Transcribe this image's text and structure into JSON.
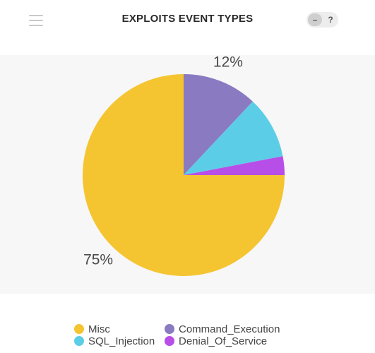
{
  "header": {
    "title": "EXPLOITS EVENT TYPES",
    "minimize_label": "–",
    "help_label": "?"
  },
  "colors": {
    "misc": "#f5c431",
    "command_execution": "#8a7ac2",
    "sql_injection": "#5ccde6",
    "denial_of_service": "#b84ee8"
  },
  "chart_data": {
    "type": "pie",
    "title": "EXPLOITS EVENT TYPES",
    "slices": [
      {
        "name": "Command_Execution",
        "value": 12,
        "color": "#8a7ac2",
        "label": "12%"
      },
      {
        "name": "SQL_Injection",
        "value": 10,
        "color": "#5ccde6",
        "label": ""
      },
      {
        "name": "Denial_Of_Service",
        "value": 3,
        "color": "#b84ee8",
        "label": ""
      },
      {
        "name": "Misc",
        "value": 75,
        "color": "#f5c431",
        "label": "75%"
      }
    ],
    "legend_placement": "bottom"
  },
  "legend": {
    "items": [
      {
        "label": "Misc",
        "color": "#f5c431"
      },
      {
        "label": "Command_Execution",
        "color": "#8a7ac2"
      },
      {
        "label": "SQL_Injection",
        "color": "#5ccde6"
      },
      {
        "label": "Denial_Of_Service",
        "color": "#b84ee8"
      }
    ]
  }
}
